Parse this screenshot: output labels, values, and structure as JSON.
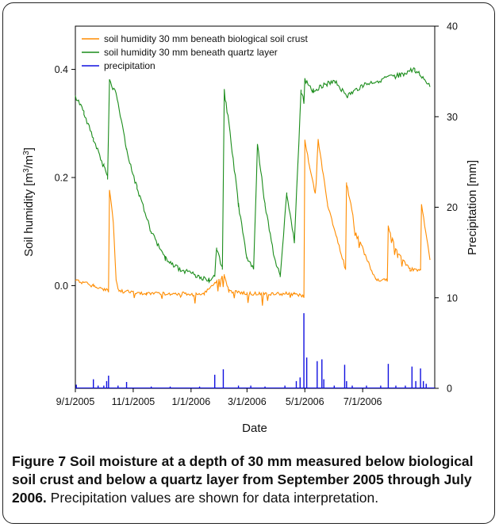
{
  "chart_data": {
    "type": "line",
    "xlabel": "Date",
    "ylabel_left_prefix": "Soil humidity [m",
    "ylabel_left_mid": "/m",
    "ylabel_left_suffix": "]",
    "ylabel_left_sup": "3",
    "ylabel_right": "Precipitation [mm]",
    "x_range": [
      "2005-09-01",
      "2006-09-15"
    ],
    "x_ticks": [
      "9/1/2005",
      "11/1/2005",
      "1/1/2006",
      "3/1/2006",
      "5/1/2006",
      "7/1/2006"
    ],
    "y_left": {
      "range": [
        -0.19,
        0.48
      ],
      "ticks": [
        "0.0",
        "0.2",
        "0.4"
      ],
      "tick_values": [
        0.0,
        0.2,
        0.4
      ]
    },
    "y_right": {
      "range": [
        0,
        40
      ],
      "ticks": [
        "0",
        "10",
        "20",
        "30",
        "40"
      ],
      "tick_values": [
        0,
        10,
        20,
        30,
        40
      ]
    },
    "legend_position": "top-left",
    "grid": false,
    "series": [
      {
        "name": "soil humidity 30 mm beneath biological soil crust",
        "color": "#ff8c00",
        "axis": "left",
        "points": [
          [
            "2005-09-01",
            0.01
          ],
          [
            "2005-09-20",
            0.0
          ],
          [
            "2005-10-06",
            -0.01
          ],
          [
            "2005-10-07",
            0.18
          ],
          [
            "2005-10-11",
            0.12
          ],
          [
            "2005-10-14",
            0.01
          ],
          [
            "2005-10-17",
            -0.01
          ],
          [
            "2005-11-15",
            -0.015
          ],
          [
            "2006-01-15",
            -0.015
          ],
          [
            "2006-02-05",
            0.02
          ],
          [
            "2006-02-10",
            -0.01
          ],
          [
            "2006-03-01",
            -0.015
          ],
          [
            "2006-04-20",
            -0.015
          ],
          [
            "2006-04-30",
            -0.02
          ],
          [
            "2006-05-01",
            0.27
          ],
          [
            "2006-05-06",
            0.22
          ],
          [
            "2006-05-12",
            0.17
          ],
          [
            "2006-05-15",
            0.27
          ],
          [
            "2006-05-25",
            0.15
          ],
          [
            "2006-06-05",
            0.08
          ],
          [
            "2006-06-13",
            0.03
          ],
          [
            "2006-06-14",
            0.19
          ],
          [
            "2006-06-24",
            0.1
          ],
          [
            "2006-07-05",
            0.05
          ],
          [
            "2006-07-15",
            0.01
          ],
          [
            "2006-07-27",
            0.01
          ],
          [
            "2006-07-28",
            0.11
          ],
          [
            "2006-08-07",
            0.06
          ],
          [
            "2006-08-20",
            0.03
          ],
          [
            "2006-08-31",
            0.03
          ],
          [
            "2006-09-01",
            0.15
          ],
          [
            "2006-09-10",
            0.05
          ]
        ]
      },
      {
        "name": "soil humidity 30 mm beneath quartz layer",
        "color": "#1a8c1a",
        "axis": "left",
        "points": [
          [
            "2005-09-01",
            0.35
          ],
          [
            "2005-09-10",
            0.32
          ],
          [
            "2005-09-20",
            0.27
          ],
          [
            "2005-10-01",
            0.22
          ],
          [
            "2005-10-05",
            0.2
          ],
          [
            "2005-10-07",
            0.38
          ],
          [
            "2005-10-15",
            0.35
          ],
          [
            "2005-10-25",
            0.25
          ],
          [
            "2005-11-05",
            0.18
          ],
          [
            "2005-11-20",
            0.1
          ],
          [
            "2005-12-05",
            0.05
          ],
          [
            "2005-12-20",
            0.03
          ],
          [
            "2006-01-05",
            0.02
          ],
          [
            "2006-01-20",
            0.01
          ],
          [
            "2006-01-26",
            0.02
          ],
          [
            "2006-01-28",
            0.07
          ],
          [
            "2006-02-03",
            0.03
          ],
          [
            "2006-02-05",
            0.36
          ],
          [
            "2006-02-10",
            0.3
          ],
          [
            "2006-02-20",
            0.15
          ],
          [
            "2006-03-01",
            0.05
          ],
          [
            "2006-03-08",
            0.03
          ],
          [
            "2006-03-12",
            0.26
          ],
          [
            "2006-03-20",
            0.15
          ],
          [
            "2006-03-30",
            0.05
          ],
          [
            "2006-04-05",
            0.02
          ],
          [
            "2006-04-12",
            0.17
          ],
          [
            "2006-04-20",
            0.08
          ],
          [
            "2006-04-27",
            0.36
          ],
          [
            "2006-04-30",
            0.34
          ],
          [
            "2006-05-01",
            0.38
          ],
          [
            "2006-05-10",
            0.36
          ],
          [
            "2006-05-20",
            0.37
          ],
          [
            "2006-06-01",
            0.38
          ],
          [
            "2006-06-15",
            0.35
          ],
          [
            "2006-07-01",
            0.37
          ],
          [
            "2006-07-20",
            0.38
          ],
          [
            "2006-08-10",
            0.39
          ],
          [
            "2006-08-25",
            0.4
          ],
          [
            "2006-09-10",
            0.37
          ]
        ]
      },
      {
        "name": "precipitation",
        "color": "#1010e0",
        "axis": "right",
        "events": [
          [
            "2005-09-02",
            0.4
          ],
          [
            "2005-09-20",
            1.0
          ],
          [
            "2005-09-25",
            0.3
          ],
          [
            "2005-10-01",
            0.3
          ],
          [
            "2005-10-04",
            0.8
          ],
          [
            "2005-10-06",
            1.4
          ],
          [
            "2005-10-16",
            0.3
          ],
          [
            "2005-10-25",
            0.7
          ],
          [
            "2005-11-20",
            0.2
          ],
          [
            "2005-12-10",
            0.2
          ],
          [
            "2006-01-10",
            0.2
          ],
          [
            "2006-01-26",
            1.5
          ],
          [
            "2006-02-04",
            2.1
          ],
          [
            "2006-02-20",
            0.3
          ],
          [
            "2006-03-05",
            0.3
          ],
          [
            "2006-03-20",
            0.2
          ],
          [
            "2006-04-10",
            0.3
          ],
          [
            "2006-04-22",
            0.8
          ],
          [
            "2006-04-26",
            1.2
          ],
          [
            "2006-04-30",
            8.3
          ],
          [
            "2006-05-03",
            3.4
          ],
          [
            "2006-05-14",
            3.0
          ],
          [
            "2006-05-19",
            3.2
          ],
          [
            "2006-05-21",
            1.0
          ],
          [
            "2006-06-01",
            0.3
          ],
          [
            "2006-06-12",
            2.6
          ],
          [
            "2006-06-14",
            0.8
          ],
          [
            "2006-06-20",
            0.3
          ],
          [
            "2006-07-05",
            0.3
          ],
          [
            "2006-07-20",
            0.3
          ],
          [
            "2006-07-28",
            2.7
          ],
          [
            "2006-08-05",
            0.3
          ],
          [
            "2006-08-15",
            0.3
          ],
          [
            "2006-08-22",
            2.4
          ],
          [
            "2006-08-26",
            0.8
          ],
          [
            "2006-08-31",
            2.2
          ],
          [
            "2006-09-03",
            0.8
          ],
          [
            "2006-09-06",
            0.5
          ]
        ]
      }
    ]
  },
  "caption": {
    "figure_label": "Figure 7",
    "bold_text": " Soil moisture at a depth of 30 mm measured below biological soil crust and below a quartz layer from September 2005 through July 2006.",
    "normal_text": " Precipitation values are shown for data interpretation."
  }
}
